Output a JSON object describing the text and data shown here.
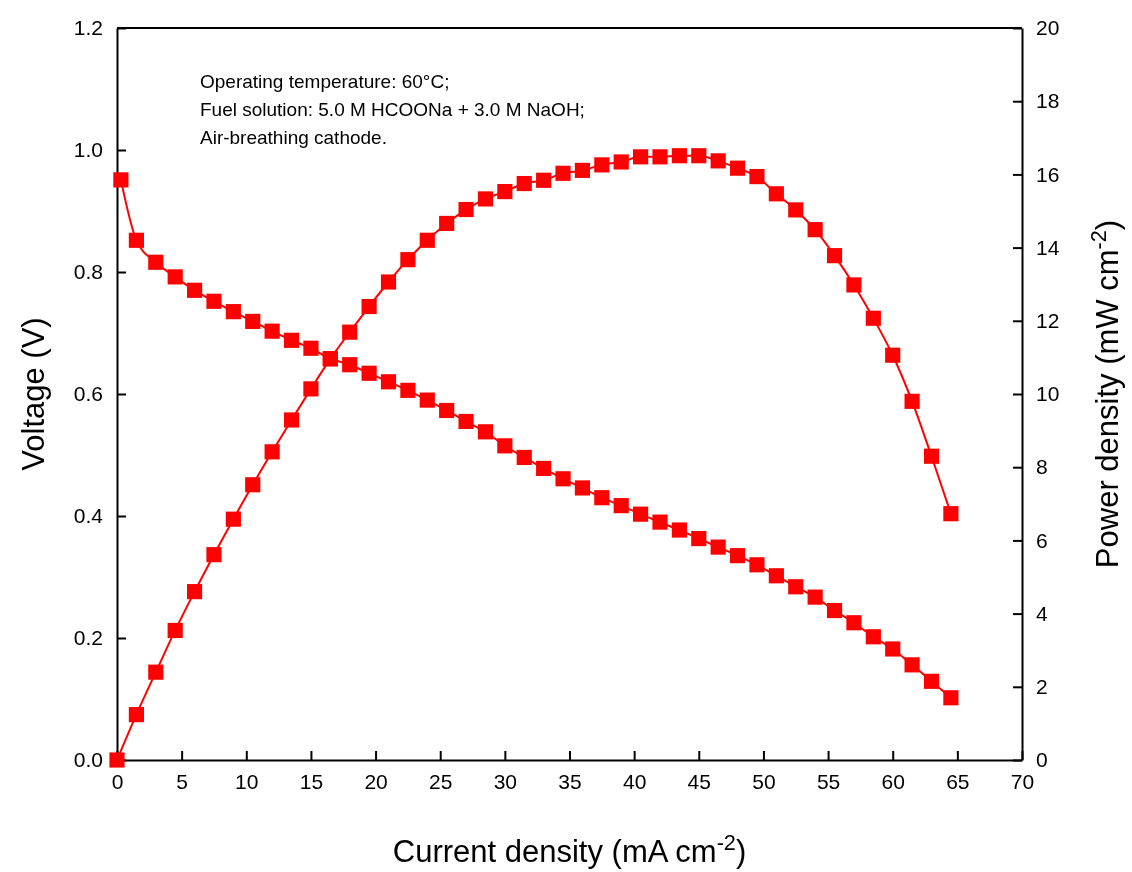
{
  "chart_data": {
    "type": "line",
    "xlabel": "Current density (mA cm$^{-2}$)",
    "ylabel": "Voltage (V)",
    "y2label": "Power density (mW cm$^{-2}$)",
    "annotations": [
      "Operating temperature: 60°C;",
      "Fuel solution: 5.0 M HCOONa + 3.0 M NaOH;",
      "Air-breathing cathode."
    ],
    "xlim": [
      0,
      70
    ],
    "xticks": [
      0,
      5,
      10,
      15,
      20,
      25,
      30,
      35,
      40,
      45,
      50,
      55,
      60,
      65,
      70
    ],
    "ylim": [
      0,
      1.2
    ],
    "yticks": [
      {
        "value": 0,
        "label": "0.0"
      },
      {
        "value": 0.2,
        "label": "0.2"
      },
      {
        "value": 0.4,
        "label": "0.4"
      },
      {
        "value": 0.6,
        "label": "0.6"
      },
      {
        "value": 0.8,
        "label": "0.8"
      },
      {
        "value": 1,
        "label": "1.0"
      },
      {
        "value": 1.2,
        "label": "1.2"
      }
    ],
    "y2lim": [
      0,
      20
    ],
    "y2ticks": [
      0,
      2,
      4,
      6,
      8,
      10,
      12,
      14,
      16,
      18,
      20
    ],
    "marker": "square",
    "line_style": "solid",
    "grid": false,
    "series": [
      {
        "color": "#ff0000",
        "x": [
          0.3,
          1.5,
          3,
          4.5,
          6,
          7.5,
          9,
          10.5,
          12,
          13.5,
          15,
          16.5,
          18,
          19.5,
          21,
          22.5,
          24,
          25.5,
          27,
          28.5,
          30,
          31.5,
          33,
          34.5,
          36,
          37.5,
          39,
          40.5,
          42,
          43.5,
          45,
          46.5,
          48,
          49.5,
          51,
          52.5,
          54,
          55.5,
          57,
          58.5,
          60,
          61.5,
          63,
          64.5
        ],
        "values": [
          0.951,
          0.852,
          0.816,
          0.792,
          0.77,
          0.752,
          0.735,
          0.719,
          0.703,
          0.688,
          0.675,
          0.658,
          0.648,
          0.634,
          0.62,
          0.606,
          0.59,
          0.573,
          0.555,
          0.538,
          0.515,
          0.496,
          0.478,
          0.461,
          0.446,
          0.43,
          0.417,
          0.403,
          0.39,
          0.377,
          0.363,
          0.349,
          0.335,
          0.32,
          0.302,
          0.284,
          0.267,
          0.245,
          0.225,
          0.202,
          0.182,
          0.156,
          0.129,
          0.102
        ]
      },
      {
        "color": "#ff0000",
        "axis": "y2",
        "x": [
          0,
          1.5,
          3,
          4.5,
          6,
          7.5,
          9,
          10.5,
          12,
          13.5,
          15,
          16.5,
          18,
          19.5,
          21,
          22.5,
          24,
          25.5,
          27,
          28.5,
          30,
          31.5,
          33,
          34.5,
          36,
          37.5,
          39,
          40.5,
          42,
          43.5,
          45,
          46.5,
          48,
          49.5,
          51,
          52.5,
          54,
          55.5,
          57,
          58.5,
          60,
          61.5,
          63,
          64.5
        ],
        "values": [
          0,
          1.24,
          2.4,
          3.54,
          4.6,
          5.61,
          6.58,
          7.52,
          8.42,
          9.29,
          10.14,
          10.96,
          11.69,
          12.39,
          13.06,
          13.67,
          14.2,
          14.66,
          15.04,
          15.33,
          15.53,
          15.75,
          15.84,
          16.03,
          16.11,
          16.26,
          16.34,
          16.48,
          16.48,
          16.51,
          16.51,
          16.37,
          16.17,
          15.94,
          15.47,
          15.03,
          14.49,
          13.78,
          12.98,
          12.07,
          11.06,
          9.8,
          8.3,
          6.73
        ]
      }
    ]
  }
}
